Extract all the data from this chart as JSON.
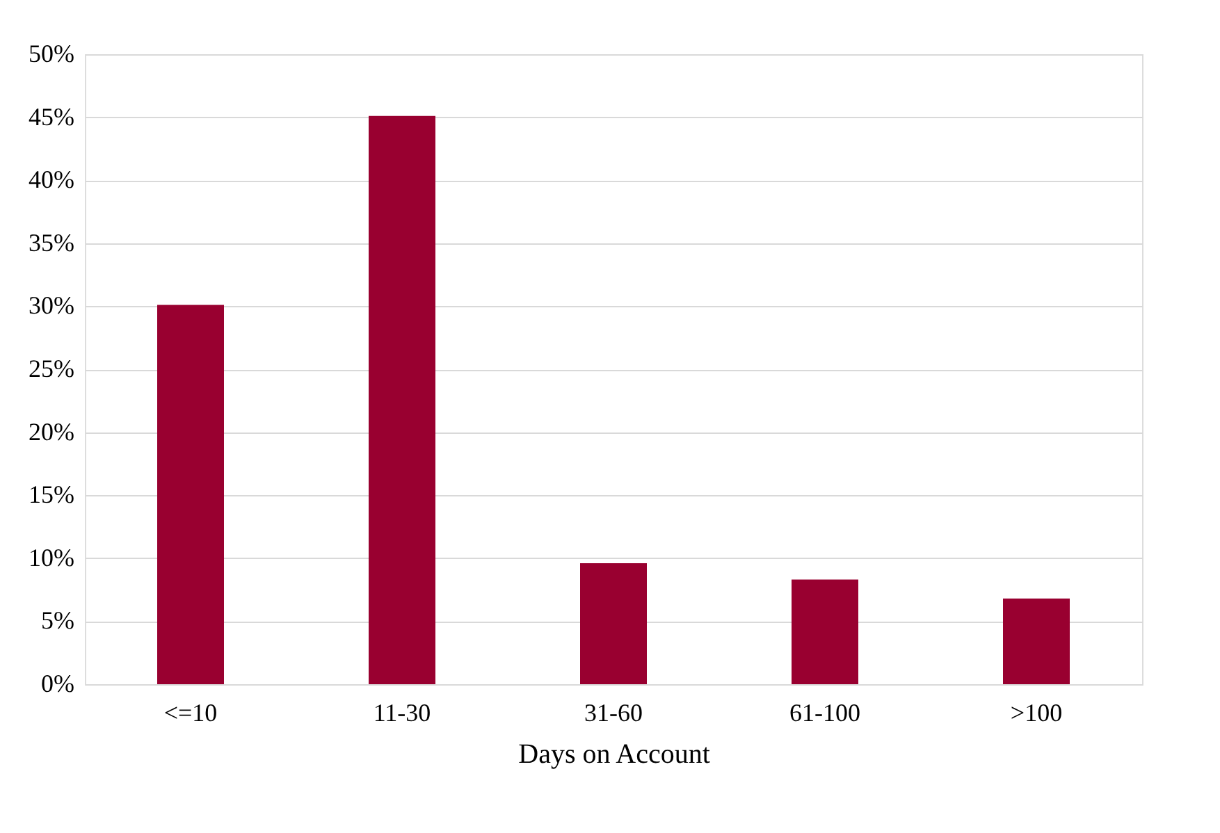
{
  "chart_data": {
    "type": "bar",
    "xlabel": "Days on Account",
    "categories": [
      "<=10",
      "11-30",
      "31-60",
      "61-100",
      ">100"
    ],
    "values": [
      30.1,
      45.1,
      9.6,
      8.3,
      6.8
    ],
    "color": "#990030",
    "ylim": [
      0,
      50
    ],
    "yticks": [
      {
        "value": 0,
        "label": "0%"
      },
      {
        "value": 5,
        "label": "5%"
      },
      {
        "value": 10,
        "label": "10%"
      },
      {
        "value": 15,
        "label": "15%"
      },
      {
        "value": 20,
        "label": "20%"
      },
      {
        "value": 25,
        "label": "25%"
      },
      {
        "value": 30,
        "label": "30%"
      },
      {
        "value": 35,
        "label": "35%"
      },
      {
        "value": 40,
        "label": "40%"
      },
      {
        "value": 45,
        "label": "45%"
      },
      {
        "value": 50,
        "label": "50%"
      }
    ],
    "grid": "y"
  }
}
